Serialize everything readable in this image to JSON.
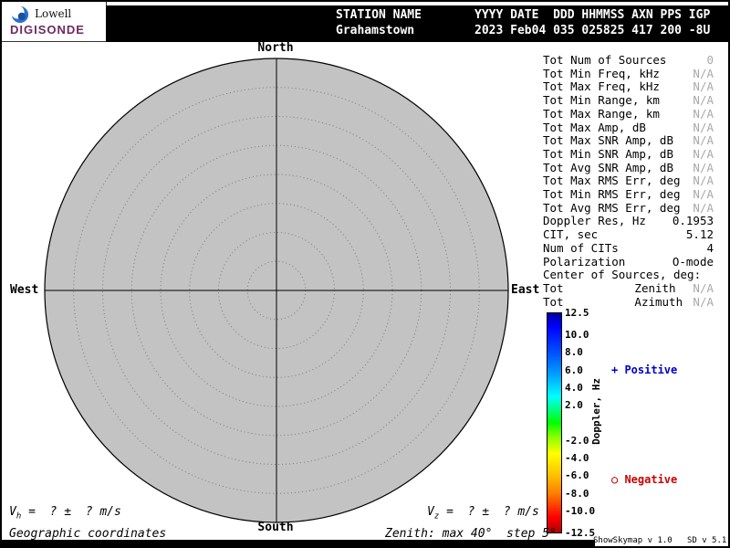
{
  "logo": {
    "name": "Lowell",
    "product": "DIGISONDE"
  },
  "header": {
    "station_label": "STATION NAME",
    "station_value": "Grahamstown",
    "fields_label": "YYYY DATE  DDD HHMMSS AXN PPS IGP",
    "fields_value": "2023 Feb04 035 025825 417 200 -8U"
  },
  "skymap": {
    "label_north": "North",
    "label_south": "South",
    "label_east": "East",
    "label_west": "West",
    "ring_count": 7,
    "fill_color": "#c3c3c3"
  },
  "stats": {
    "rows": [
      {
        "label": "Tot Num of Sources",
        "value": "0",
        "dim": true
      },
      {
        "label": "Tot Min Freq, kHz",
        "value": "N/A",
        "dim": true
      },
      {
        "label": "Tot Max Freq, kHz",
        "value": "N/A",
        "dim": true
      },
      {
        "label": "Tot Min Range, km",
        "value": "N/A",
        "dim": true
      },
      {
        "label": "Tot Max Range, km",
        "value": "N/A",
        "dim": true
      },
      {
        "label": "Tot Max Amp, dB",
        "value": "N/A",
        "dim": true
      },
      {
        "label": "Tot Max SNR Amp, dB",
        "value": "N/A",
        "dim": true
      },
      {
        "label": "Tot Min SNR Amp, dB",
        "value": "N/A",
        "dim": true
      },
      {
        "label": "Tot Avg SNR Amp, dB",
        "value": "N/A",
        "dim": true
      },
      {
        "label": "Tot Max RMS Err, deg",
        "value": "N/A",
        "dim": true
      },
      {
        "label": "Tot Min RMS Err, deg",
        "value": "N/A",
        "dim": true
      },
      {
        "label": "Tot Avg RMS Err, deg",
        "value": "N/A",
        "dim": true
      },
      {
        "label": "Doppler Res, Hz",
        "value": "0.1953",
        "dim": false
      },
      {
        "label": "CIT, sec",
        "value": "5.12",
        "dim": false
      },
      {
        "label": "Num of CITs",
        "value": "4",
        "dim": false
      },
      {
        "label": "Polarization",
        "value": "O-mode",
        "dim": false
      },
      {
        "label": "Center of Sources, deg:",
        "value": "",
        "dim": false
      },
      {
        "label": "Tot",
        "mid": "Zenith",
        "value": "N/A",
        "dim": true
      },
      {
        "label": "Tot",
        "mid": "Azimuth",
        "value": "N/A",
        "dim": true
      }
    ]
  },
  "colorbar": {
    "title": "Doppler, Hz",
    "max": 12.5,
    "min": -12.5,
    "ticks": [
      "12.5",
      "10.0",
      "8.0",
      "6.0",
      "4.0",
      "2.0",
      "-2.0",
      "-4.0",
      "-6.0",
      "-8.0",
      "-10.0",
      "-12.5"
    ],
    "positive_label": "+ Positive",
    "negative_label": "○ Negative",
    "positive_color": "#0000cc",
    "negative_color": "#cc0000"
  },
  "footer": {
    "vh_prefix": "V",
    "vh_sub": "h",
    "vh_rest": " =  ? ±  ? m/s",
    "vz_prefix": "V",
    "vz_sub": "z",
    "vz_rest": " =  ? ±  ? m/s",
    "coords_note": "Geographic coordinates",
    "zenith_note": "Zenith: max 40°  step 5°",
    "version": "ShowSkymap v 1.0   SD v 5.1"
  },
  "chart_data": {
    "type": "scatter",
    "title": "Skymap polar plot (no sources)",
    "points": [],
    "polar": {
      "zenith_max_deg": 40,
      "zenith_step_deg": 5
    },
    "colorbar": {
      "label": "Doppler, Hz",
      "range": [
        -12.5,
        12.5
      ]
    }
  }
}
